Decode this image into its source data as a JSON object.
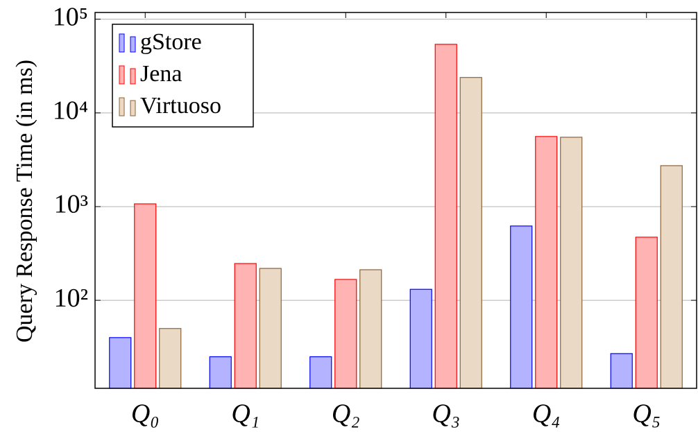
{
  "chart_data": {
    "type": "bar",
    "ylabel": "Query Response Time (in ms)",
    "log_y": true,
    "grid": true,
    "legend": "upper left",
    "categories": [
      "Q₀",
      "Q₁",
      "Q₂",
      "Q₃",
      "Q₄",
      "Q₅"
    ],
    "series": [
      {
        "name": "gStore",
        "color": "#b3b3ff",
        "edgecolor": "#0000ff",
        "values": [
          40,
          25,
          25,
          131,
          621,
          27
        ]
      },
      {
        "name": "Jena",
        "color": "#ffb3b3",
        "edgecolor": "#ff0000",
        "values": [
          1070,
          247,
          167,
          54000,
          5600,
          472
        ]
      },
      {
        "name": "Virtuoso",
        "color": "#ead9c5",
        "edgecolor": "#8c6239",
        "values": [
          50,
          219,
          212,
          23900,
          5500,
          2735
        ]
      }
    ],
    "ylim": [
      11.5,
      118000
    ],
    "yticks": [
      {
        "value": 100,
        "label": "10²"
      },
      {
        "value": 1000,
        "label": "10³"
      },
      {
        "value": 10000,
        "label": "10⁴"
      },
      {
        "value": 100000,
        "label": "10⁵"
      }
    ]
  }
}
